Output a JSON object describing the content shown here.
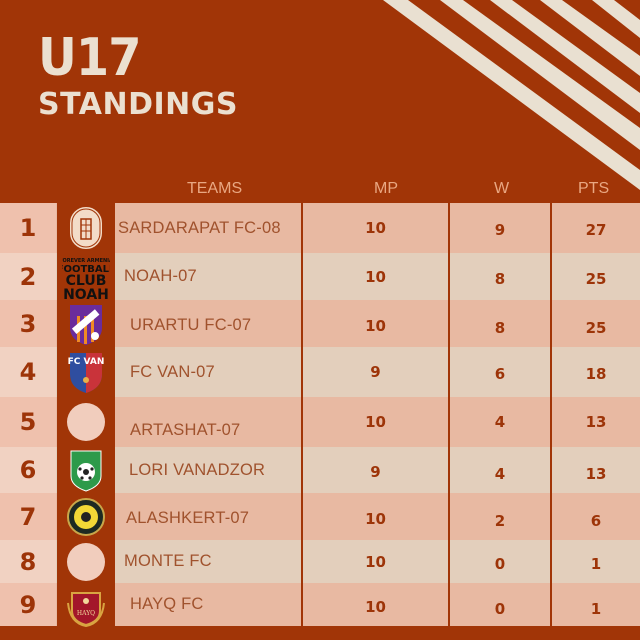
{
  "title": {
    "line1": "U17",
    "line2": "STANDINGS"
  },
  "colors": {
    "background": "#a13507",
    "cream": "#ebe0d0",
    "row_dark": "#e8b9a2",
    "row_light": "#e3cfbc",
    "rank_dark": "#efc1ad",
    "rank_light": "#f1d2c2",
    "text": "#9d3408"
  },
  "headers": {
    "teams": "TEAMS",
    "mp": "MP",
    "w": "W",
    "pts": "PTS"
  },
  "rows": [
    {
      "rank": "1",
      "team": "SARDARAPAT FC-08",
      "logo": "sardarapat-logo",
      "mp": "10",
      "w": "9",
      "pts": "27"
    },
    {
      "rank": "2",
      "team": "NOAH-07",
      "logo": "noah-logo",
      "mp": "10",
      "w": "8",
      "pts": "25"
    },
    {
      "rank": "3",
      "team": "URARTU FC-07",
      "logo": "urartu-logo",
      "mp": "10",
      "w": "8",
      "pts": "25"
    },
    {
      "rank": "4",
      "team": "FC VAN-07",
      "logo": "fc-van-logo",
      "mp": "9",
      "w": "6",
      "pts": "18"
    },
    {
      "rank": "5",
      "team": "ARTASHAT-07",
      "logo": "blank-logo",
      "mp": "10",
      "w": "4",
      "pts": "13"
    },
    {
      "rank": "6",
      "team": "LORI VANADZOR",
      "logo": "lori-logo",
      "mp": "9",
      "w": "4",
      "pts": "13"
    },
    {
      "rank": "7",
      "team": "ALASHKERT-07",
      "logo": "alashkert-logo",
      "mp": "10",
      "w": "2",
      "pts": "6"
    },
    {
      "rank": "8",
      "team": "MONTE FC",
      "logo": "blank-logo",
      "mp": "10",
      "w": "0",
      "pts": "1"
    },
    {
      "rank": "9",
      "team": "HAYQ FC",
      "logo": "hayq-logo",
      "mp": "10",
      "w": "0",
      "pts": "1"
    }
  ]
}
